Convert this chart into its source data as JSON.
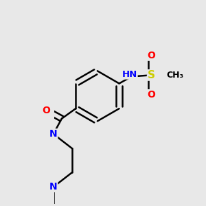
{
  "background_color": "#e8e8e8",
  "atom_colors": {
    "C": "#000000",
    "N": "#0000ff",
    "O": "#ff0000",
    "S": "#cccc00",
    "H": "#606060"
  },
  "bond_color": "#000000",
  "bond_width": 1.8,
  "font_size_atoms": 10,
  "fig_width": 3.0,
  "fig_height": 3.0,
  "dpi": 100
}
